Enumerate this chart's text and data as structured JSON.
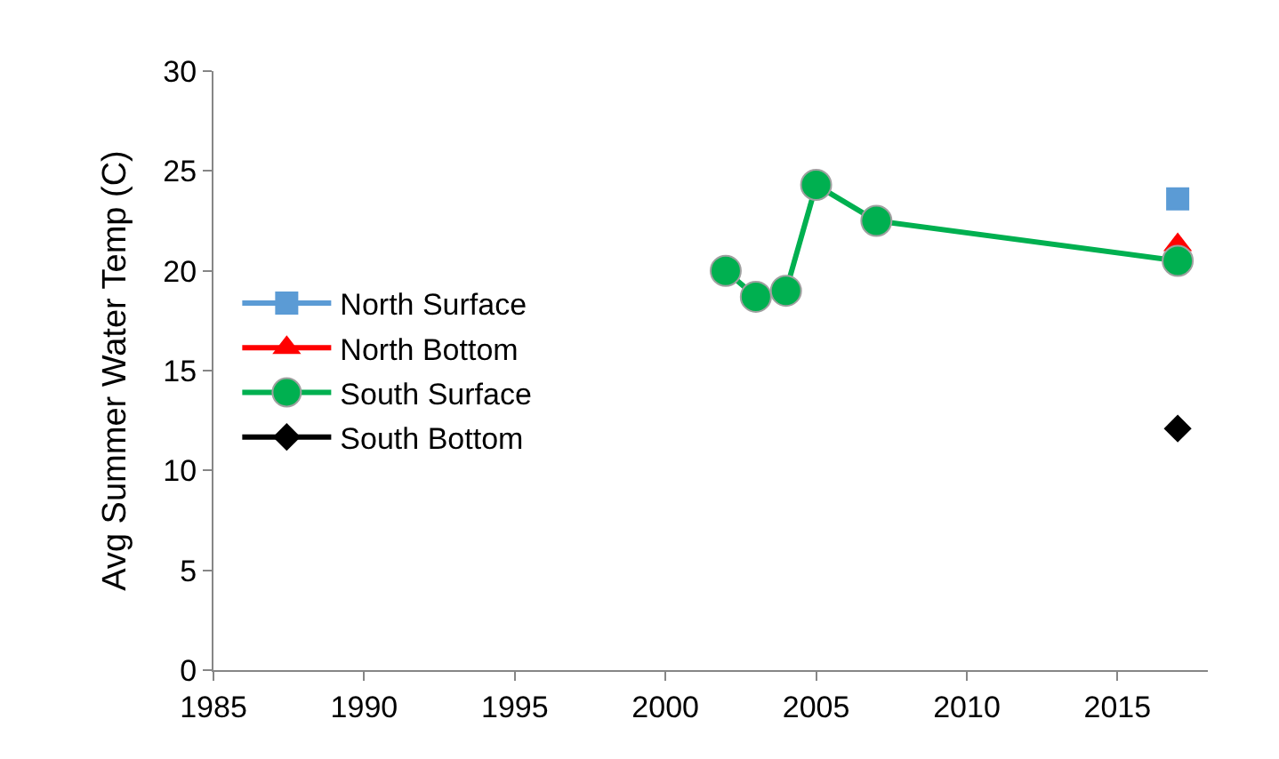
{
  "chart_data": {
    "type": "line",
    "ylabel": "Avg Summer Water Temp (C)",
    "xlim": [
      1985,
      2018
    ],
    "xticks": [
      1985,
      1990,
      1995,
      2000,
      2005,
      2010,
      2015
    ],
    "ylim": [
      0,
      30
    ],
    "yticks": [
      0,
      5,
      10,
      15,
      20,
      25,
      30
    ],
    "grid": false,
    "legend": "left",
    "series": [
      {
        "name": "North Surface",
        "color": "#5b9bd5",
        "marker": "square",
        "x": [
          2017
        ],
        "values": [
          23.6
        ]
      },
      {
        "name": "North Bottom",
        "color": "#ff0000",
        "marker": "triangle",
        "x": [
          2017
        ],
        "values": [
          21.3
        ]
      },
      {
        "name": "South Surface",
        "color": "#00b050",
        "marker": "circle",
        "x": [
          2002,
          2003,
          2004,
          2005,
          2007,
          2017
        ],
        "values": [
          20.0,
          18.7,
          19.0,
          24.3,
          22.5,
          20.5
        ]
      },
      {
        "name": "South Bottom",
        "color": "#000000",
        "marker": "diamond",
        "x": [
          2017
        ],
        "values": [
          12.1
        ]
      }
    ]
  }
}
